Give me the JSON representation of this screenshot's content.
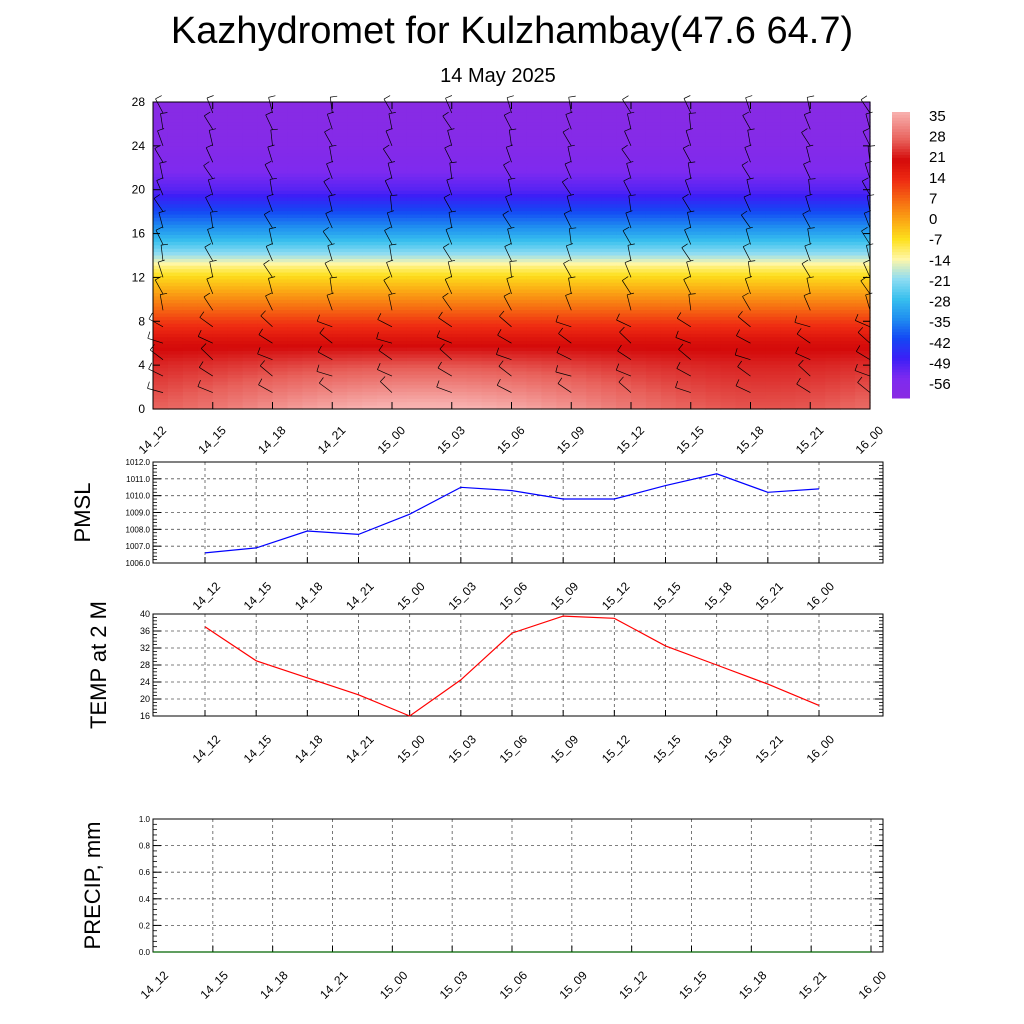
{
  "header": {
    "title": "Kazhydromet for Kulzhambay(47.6 64.7)",
    "subtitle": "14 May 2025"
  },
  "chart_data": [
    {
      "type": "heatmap",
      "id": "cross-section",
      "title": "",
      "y_ticks": [
        0,
        4,
        8,
        12,
        16,
        20,
        24,
        28
      ],
      "ylim": [
        0,
        28
      ],
      "x": [
        "14_12",
        "14_15",
        "14_18",
        "14_21",
        "15_00",
        "15_03",
        "15_06",
        "15_09",
        "15_12",
        "15_15",
        "15_18",
        "15_21",
        "16_00"
      ],
      "colorbar": {
        "labels": [
          35,
          28,
          21,
          14,
          7,
          0,
          -7,
          -14,
          -21,
          -28,
          -35,
          -42,
          -49,
          -56
        ],
        "range": [
          -63,
          38
        ],
        "stops": [
          {
            "v": -63,
            "color": "#8a2be2"
          },
          {
            "v": -56,
            "color": "#7d2af0"
          },
          {
            "v": -49,
            "color": "#3b1ff6"
          },
          {
            "v": -42,
            "color": "#1448f4"
          },
          {
            "v": -35,
            "color": "#1f8ef0"
          },
          {
            "v": -28,
            "color": "#38c0ee"
          },
          {
            "v": -21,
            "color": "#8fdcf2"
          },
          {
            "v": -14,
            "color": "#fff7a8"
          },
          {
            "v": -7,
            "color": "#fde01c"
          },
          {
            "v": 0,
            "color": "#fba414"
          },
          {
            "v": 7,
            "color": "#f66812"
          },
          {
            "v": 14,
            "color": "#ee2a12"
          },
          {
            "v": 21,
            "color": "#d40a0a"
          },
          {
            "v": 28,
            "color": "#e8605a"
          },
          {
            "v": 38,
            "color": "#f8b2b0"
          }
        ]
      },
      "temperature_profile": [
        {
          "y": 0,
          "t": 33
        },
        {
          "y": 2,
          "t": 29
        },
        {
          "y": 4,
          "t": 25
        },
        {
          "y": 6,
          "t": 20
        },
        {
          "y": 8,
          "t": 12
        },
        {
          "y": 10,
          "t": 3
        },
        {
          "y": 12,
          "t": -6
        },
        {
          "y": 13,
          "t": -12
        },
        {
          "y": 14,
          "t": -20
        },
        {
          "y": 16,
          "t": -32
        },
        {
          "y": 18,
          "t": -42
        },
        {
          "y": 20,
          "t": -52
        },
        {
          "y": 22,
          "t": -57
        },
        {
          "y": 24,
          "t": -60
        },
        {
          "y": 28,
          "t": -62
        }
      ],
      "wind_barbs": "present"
    },
    {
      "type": "line",
      "id": "pmsl",
      "ylabel": "PMSL",
      "x": [
        "14_12",
        "14_15",
        "14_18",
        "14_21",
        "15_00",
        "15_03",
        "15_06",
        "15_09",
        "15_12",
        "15_15",
        "15_18",
        "15_21",
        "16_00"
      ],
      "series": [
        {
          "values": [
            1006.6,
            1006.9,
            1007.9,
            1007.7,
            1008.9,
            1010.5,
            1010.3,
            1009.8,
            1009.8,
            1010.6,
            1011.3,
            1010.2,
            1010.4
          ]
        }
      ],
      "ylim": [
        1006.0,
        1012.0
      ],
      "y_ticks": [
        "1006.0",
        "1007.0",
        "1008.0",
        "1009.0",
        "1010.0",
        "1011.0",
        "1012.0"
      ],
      "color": "#0000ff",
      "grid": true
    },
    {
      "type": "line",
      "id": "temp2m",
      "ylabel": "TEMP at 2 M",
      "x": [
        "14_12",
        "14_15",
        "14_18",
        "14_21",
        "15_00",
        "15_03",
        "15_06",
        "15_09",
        "15_12",
        "15_15",
        "15_18",
        "15_21",
        "16_00"
      ],
      "series": [
        {
          "values": [
            37.0,
            29.0,
            25.0,
            21.0,
            16.0,
            24.5,
            35.5,
            39.5,
            39.0,
            32.5,
            28.0,
            23.5,
            18.5
          ]
        }
      ],
      "ylim": [
        16,
        40
      ],
      "y_ticks": [
        "16",
        "20",
        "24",
        "28",
        "32",
        "36",
        "40"
      ],
      "color": "#ff0000",
      "grid": true
    },
    {
      "type": "line",
      "id": "precip",
      "ylabel": "PRECIP, mm",
      "x": [
        "14_12",
        "14_15",
        "14_18",
        "14_21",
        "15_00",
        "15_03",
        "15_06",
        "15_09",
        "15_12",
        "15_15",
        "15_18",
        "15_21",
        "16_00"
      ],
      "series": [
        {
          "values": [
            0,
            0,
            0,
            0,
            0,
            0,
            0,
            0,
            0,
            0,
            0,
            0,
            0
          ]
        }
      ],
      "ylim": [
        0,
        1
      ],
      "y_ticks": [
        "0.0",
        "0.2",
        "0.4",
        "0.6",
        "0.8",
        "1.0"
      ],
      "color": "#006400",
      "grid": true
    }
  ]
}
